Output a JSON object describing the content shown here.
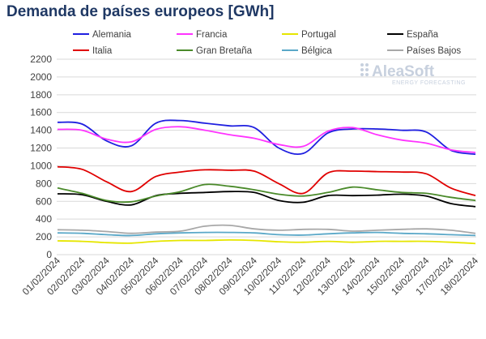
{
  "chart_data": {
    "type": "line",
    "title": "Demanda de países europeos [GWh]",
    "xlabel": "",
    "ylabel": "",
    "ylim": [
      0,
      2200
    ],
    "ytick_step": 200,
    "grid": true,
    "legend_position": "top",
    "x": [
      "01/02/2024",
      "02/02/2024",
      "03/02/2024",
      "04/02/2024",
      "05/02/2024",
      "06/02/2024",
      "07/02/2024",
      "08/02/2024",
      "09/02/2024",
      "10/02/2024",
      "11/02/2024",
      "12/02/2024",
      "13/02/2024",
      "14/02/2024",
      "15/02/2024",
      "16/02/2024",
      "17/02/2024",
      "18/02/2024"
    ],
    "series": [
      {
        "name": "Alemania",
        "color": "#1f1fe0",
        "values": [
          1490,
          1470,
          1280,
          1225,
          1480,
          1510,
          1480,
          1450,
          1430,
          1200,
          1140,
          1370,
          1415,
          1415,
          1400,
          1380,
          1175,
          1130
        ]
      },
      {
        "name": "Francia",
        "color": "#ff33ff",
        "values": [
          1410,
          1400,
          1300,
          1270,
          1410,
          1440,
          1400,
          1350,
          1310,
          1240,
          1220,
          1390,
          1430,
          1350,
          1290,
          1255,
          1180,
          1150
        ]
      },
      {
        "name": "Portugal",
        "color": "#e6e600",
        "values": [
          155,
          150,
          135,
          130,
          150,
          160,
          160,
          165,
          160,
          145,
          140,
          150,
          140,
          150,
          150,
          150,
          140,
          125
        ]
      },
      {
        "name": "España",
        "color": "#000000",
        "values": [
          685,
          675,
          600,
          560,
          665,
          690,
          700,
          710,
          700,
          610,
          590,
          665,
          665,
          670,
          680,
          660,
          575,
          540
        ]
      },
      {
        "name": "Italia",
        "color": "#e00000",
        "values": [
          990,
          960,
          820,
          710,
          880,
          930,
          955,
          950,
          940,
          800,
          690,
          920,
          940,
          935,
          930,
          910,
          750,
          665
        ]
      },
      {
        "name": "Gran Bretaña",
        "color": "#4a8a2a",
        "values": [
          750,
          690,
          610,
          595,
          660,
          710,
          790,
          770,
          730,
          680,
          660,
          700,
          760,
          730,
          700,
          690,
          645,
          610
        ]
      },
      {
        "name": "Bélgica",
        "color": "#5aa8c8",
        "values": [
          245,
          240,
          225,
          215,
          235,
          245,
          250,
          250,
          245,
          225,
          220,
          235,
          245,
          250,
          240,
          235,
          225,
          215
        ]
      },
      {
        "name": "Países Bajos",
        "color": "#a8a8a8",
        "values": [
          280,
          275,
          260,
          240,
          255,
          265,
          320,
          330,
          290,
          275,
          285,
          285,
          265,
          275,
          285,
          290,
          275,
          240
        ]
      }
    ]
  },
  "watermark": {
    "brand": "AleaSoft",
    "tagline": "ENERGY FORECASTING"
  }
}
